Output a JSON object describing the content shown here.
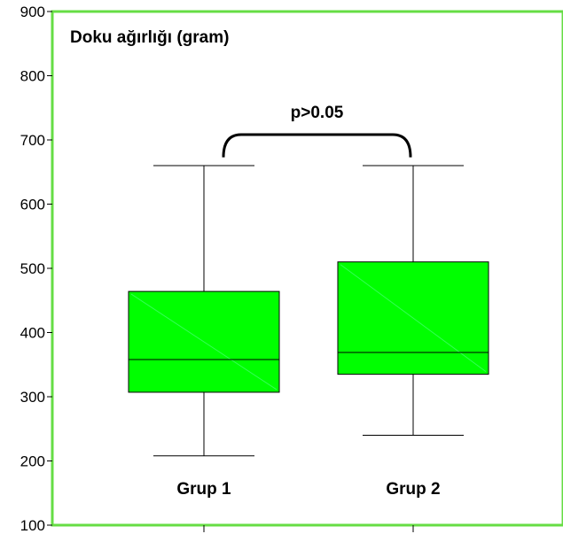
{
  "chart_data": {
    "type": "box",
    "title": "Doku ağırlığı (gram)",
    "xlabel": "",
    "ylabel": "",
    "ylim": [
      100,
      900
    ],
    "yticks": [
      100,
      200,
      300,
      400,
      500,
      600,
      700,
      800,
      900
    ],
    "categories": [
      "Grup 1",
      "Grup 2"
    ],
    "boxes": [
      {
        "category": "Grup 1",
        "min": 208,
        "q1": 307,
        "median": 358,
        "q3": 464,
        "max": 660
      },
      {
        "category": "Grup 2",
        "min": 240,
        "q1": 335,
        "median": 369,
        "q3": 510,
        "max": 660
      }
    ],
    "annotation": {
      "text": "p>0.05",
      "between": [
        "Grup 1",
        "Grup 2"
      ]
    },
    "colors": {
      "box_fill": "#00ff00",
      "frame": "#66dd44",
      "line": "#000000"
    }
  }
}
